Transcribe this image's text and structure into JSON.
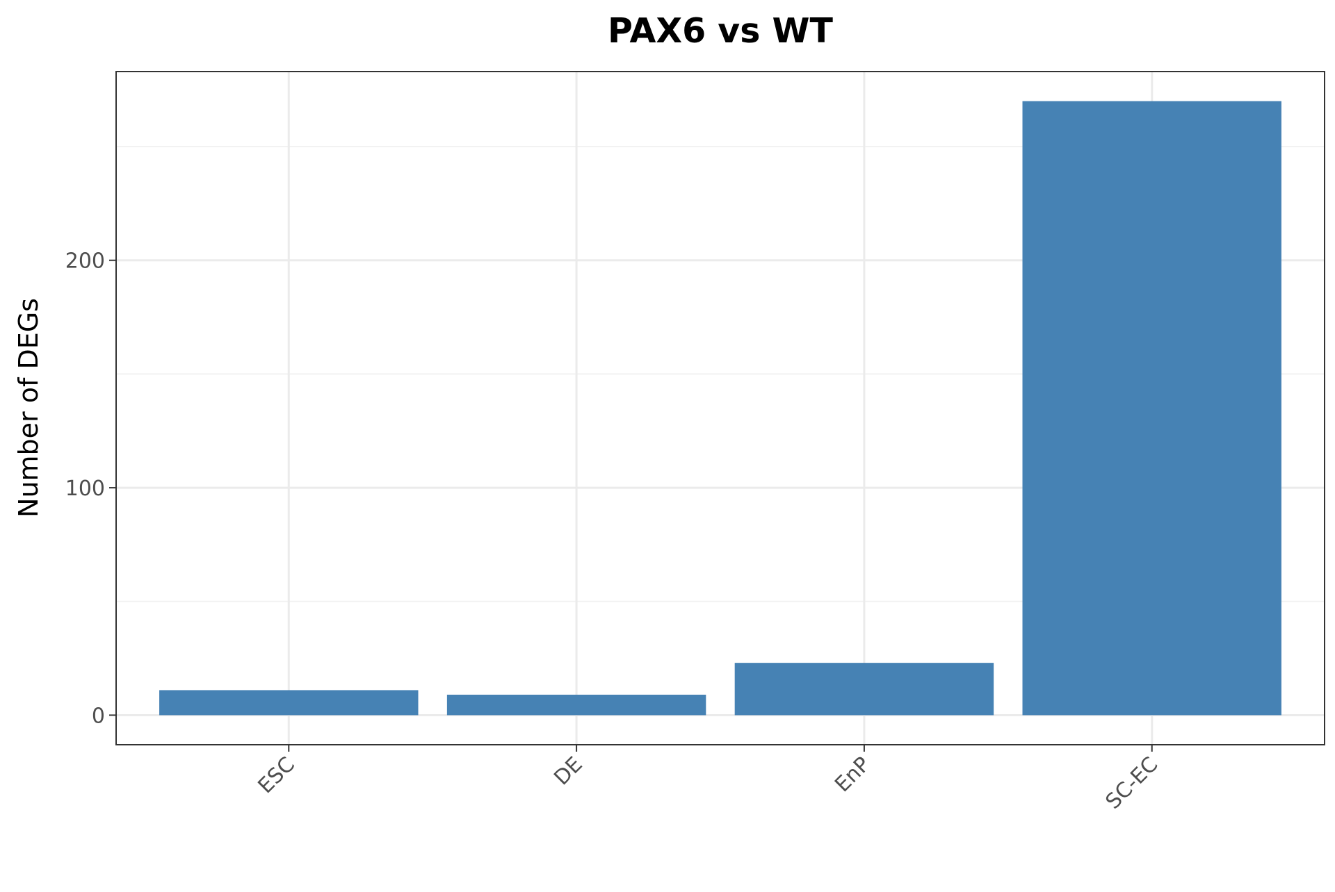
{
  "chart_data": {
    "type": "bar",
    "title": "PAX6 vs WT",
    "xlabel": "",
    "ylabel": "Number of DEGs",
    "categories": [
      "ESC",
      "DE",
      "EnP",
      "SC-EC"
    ],
    "values": [
      11,
      9,
      23,
      270
    ],
    "ylim": [
      -13,
      283
    ],
    "yticks": [
      0,
      100,
      200
    ],
    "ytick_labels": [
      "0",
      "100",
      "200"
    ],
    "grid": true,
    "legend": "none",
    "colors": {
      "bar": "#4682b4",
      "panel_border": "#333333",
      "grid_major": "#ebebeb",
      "grid_minor": "#f2f2f2",
      "tick_text": "#4d4d4d",
      "title_text": "#000000"
    }
  }
}
